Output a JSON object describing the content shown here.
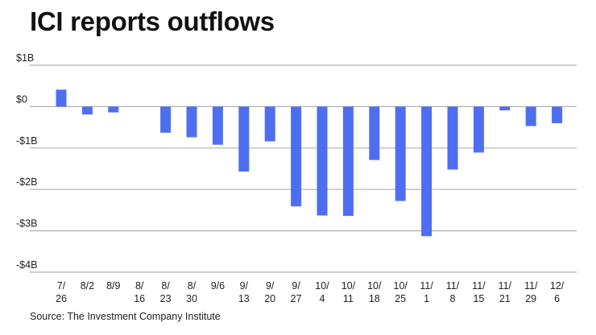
{
  "chart_data": {
    "type": "bar",
    "title": "ICI reports outflows",
    "source": "Source: The Investment Company Institute",
    "xlabel": "",
    "ylabel": "",
    "ylim": [
      -4,
      1
    ],
    "unit": "$ billions",
    "grid": true,
    "bar_color": "#4e6ef2",
    "grid_color": "#b0b0b0",
    "y_ticks": [
      {
        "value": 1,
        "label": "$1B"
      },
      {
        "value": 0,
        "label": "$0"
      },
      {
        "value": -1,
        "label": "-$1B"
      },
      {
        "value": -2,
        "label": "-$2B"
      },
      {
        "value": -3,
        "label": "-$3B"
      },
      {
        "value": -4,
        "label": "-$4B"
      }
    ],
    "categories": [
      [
        "7/",
        "26"
      ],
      [
        "8/2",
        ""
      ],
      [
        "8/9",
        ""
      ],
      [
        "8/",
        "16"
      ],
      [
        "8/",
        "23"
      ],
      [
        "8/",
        "30"
      ],
      [
        "9/6",
        ""
      ],
      [
        "9/",
        "13"
      ],
      [
        "9/",
        "20"
      ],
      [
        "9/",
        "27"
      ],
      [
        "10/",
        "4"
      ],
      [
        "10/",
        "11"
      ],
      [
        "10/",
        "18"
      ],
      [
        "10/",
        "25"
      ],
      [
        "11/",
        "1"
      ],
      [
        "11/",
        "8"
      ],
      [
        "11/",
        "15"
      ],
      [
        "11/",
        "21"
      ],
      [
        "11/",
        "29"
      ],
      [
        "12/",
        "6"
      ]
    ],
    "values": [
      0.41,
      -0.19,
      -0.14,
      0,
      -0.63,
      -0.74,
      -0.92,
      -1.57,
      -0.84,
      -2.41,
      -2.63,
      -2.64,
      -1.29,
      -2.28,
      -3.13,
      -1.52,
      -1.11,
      -0.09,
      -0.47,
      -0.4
    ]
  }
}
